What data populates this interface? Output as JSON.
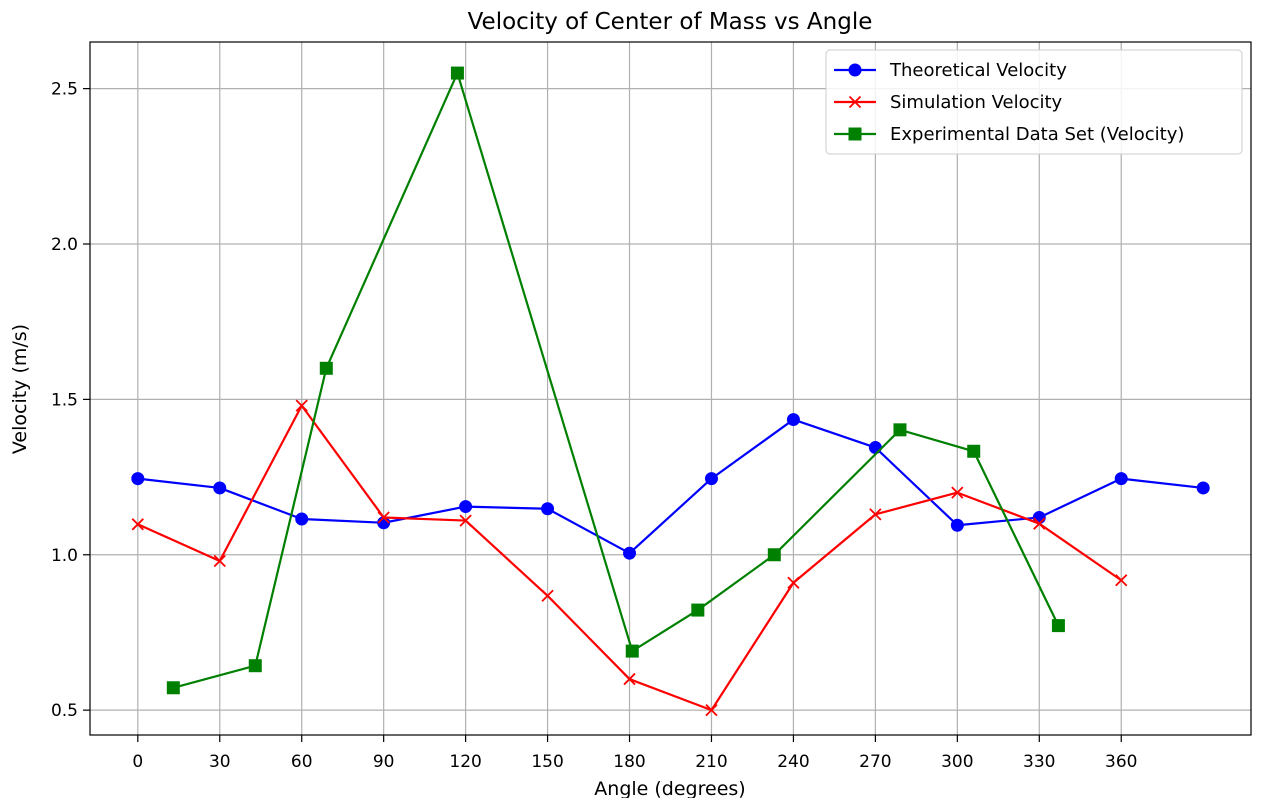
{
  "chart_data": {
    "type": "line",
    "title": "Velocity of Center of Mass vs Angle",
    "xlabel": "Angle (degrees)",
    "ylabel": "Velocity (m/s)",
    "xlim": [
      -17.5,
      407.5
    ],
    "ylim": [
      0.42,
      2.65
    ],
    "xticks": [
      0,
      30,
      60,
      90,
      120,
      150,
      180,
      210,
      240,
      270,
      300,
      330,
      360
    ],
    "yticks": [
      0.5,
      1.0,
      1.5,
      2.0,
      2.5
    ],
    "ytick_labels": [
      "0.5",
      "1.0",
      "1.5",
      "2.0",
      "2.5"
    ],
    "grid": true,
    "legend_position": "top-right",
    "series": [
      {
        "name": "Theoretical Velocity",
        "color": "#0000ff",
        "marker": "circle",
        "x": [
          0,
          30,
          60,
          90,
          120,
          150,
          180,
          210,
          240,
          270,
          300,
          330,
          360,
          390
        ],
        "y": [
          1.245,
          1.215,
          1.115,
          1.103,
          1.155,
          1.148,
          1.005,
          1.245,
          1.435,
          1.345,
          1.095,
          1.12,
          1.245,
          1.215
        ]
      },
      {
        "name": "Simulation Velocity",
        "color": "#ff0000",
        "marker": "x",
        "x": [
          0,
          30,
          60,
          90,
          120,
          150,
          180,
          210,
          240,
          270,
          300,
          330,
          360
        ],
        "y": [
          1.098,
          0.98,
          1.48,
          1.12,
          1.11,
          0.868,
          0.6,
          0.5,
          0.91,
          1.13,
          1.2,
          1.1,
          0.918
        ]
      },
      {
        "name": "Experimental Data Set (Velocity)",
        "color": "#008000",
        "marker": "square",
        "x": [
          13,
          43,
          69,
          117,
          181,
          205,
          233,
          279,
          306,
          337
        ],
        "y": [
          0.572,
          0.643,
          1.6,
          2.55,
          0.69,
          0.822,
          1.0,
          1.402,
          1.333,
          0.772
        ]
      }
    ]
  }
}
